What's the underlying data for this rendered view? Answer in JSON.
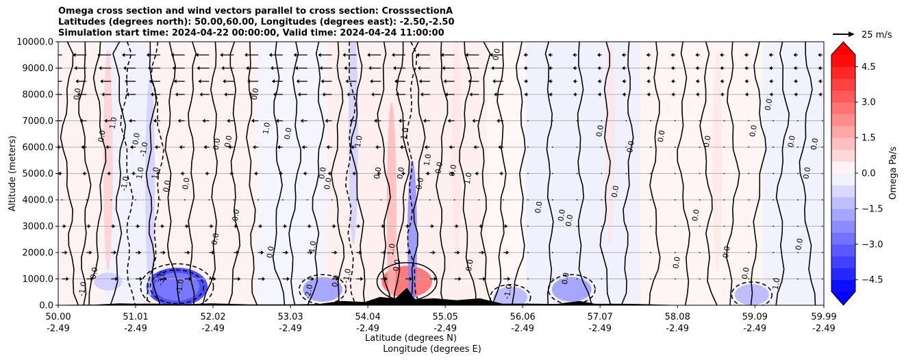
{
  "chart_data": {
    "type": "heatmap",
    "title_lines": [
      "Omega cross section and wind vectors parallel to cross section: CrosssectionA",
      "Latitudes (degrees north): 50.00,60.00, Longitudes (degrees east): -2.50,-2.50",
      "Simulation start time: 2024-04-22 00:00:00, Valid time: 2024-04-24 11:00:00"
    ],
    "ylabel": "Altitude (meters)",
    "xlabel_lat": "Latitude (degrees N)",
    "xlabel_lon": "Longitude (degrees E)",
    "ylim": [
      0,
      10000
    ],
    "yticks": [
      0,
      1000,
      2000,
      3000,
      4000,
      5000,
      6000,
      7000,
      8000,
      9000,
      10000
    ],
    "ytick_labels": [
      "0.0",
      "1000.0",
      "2000.0",
      "3000.0",
      "4000.0",
      "5000.0",
      "6000.0",
      "7000.0",
      "8000.0",
      "9000.0",
      "10000.0"
    ],
    "xlim": [
      50.0,
      59.99
    ],
    "xticks_lat": [
      50.0,
      51.01,
      52.02,
      53.03,
      54.04,
      55.05,
      56.06,
      57.07,
      58.08,
      59.09,
      59.99
    ],
    "xtick_lat_labels": [
      "50.00",
      "51.01",
      "52.02",
      "53.03",
      "54.04",
      "55.05",
      "56.06",
      "57.07",
      "58.08",
      "59.09",
      "59.99"
    ],
    "xtick_lon_labels": [
      "-2.49",
      "-2.49",
      "-2.49",
      "-2.49",
      "-2.49",
      "-2.49",
      "-2.49",
      "-2.49",
      "-2.49",
      "-2.49",
      "-2.49"
    ],
    "grid": "horizontal",
    "colorbar": {
      "label": "Omega Pa/s",
      "range": [
        -5.0,
        5.0
      ],
      "step": 0.5,
      "tick_values": [
        -4.5,
        -3.0,
        -1.5,
        0.0,
        1.5,
        3.0,
        4.5
      ],
      "tick_labels": [
        "−4.5",
        "−3.0",
        "−1.5",
        "0.0",
        "1.5",
        "3.0",
        "4.5"
      ],
      "cmap": "bwr",
      "extend": "both"
    },
    "quiver_key": {
      "label": "25 m/s",
      "value": 25
    },
    "omega_features": [
      {
        "lat": 51.55,
        "alt": 700,
        "value": -4.0,
        "kind": "blob"
      },
      {
        "lat": 51.55,
        "alt": 700,
        "value": -2.5,
        "kind": "blob"
      },
      {
        "lat": 50.65,
        "alt": 900,
        "value": -1.0,
        "kind": "blob"
      },
      {
        "lat": 53.45,
        "alt": 600,
        "value": -2.0,
        "kind": "blob"
      },
      {
        "lat": 55.9,
        "alt": 300,
        "value": -1.5,
        "kind": "blob"
      },
      {
        "lat": 56.7,
        "alt": 600,
        "value": -2.0,
        "kind": "blob"
      },
      {
        "lat": 59.05,
        "alt": 400,
        "value": -1.5,
        "kind": "blob"
      },
      {
        "lat": 54.55,
        "alt": 900,
        "value": 3.0,
        "kind": "blob"
      },
      {
        "lat": 54.62,
        "alt": 2500,
        "value": -2.5,
        "kind": "column"
      },
      {
        "lat": 54.35,
        "alt": 3500,
        "value": 1.5,
        "kind": "column"
      },
      {
        "lat": 50.65,
        "alt": 5500,
        "value": 1.0,
        "kind": "column"
      },
      {
        "lat": 51.2,
        "alt": 4500,
        "value": -1.0,
        "kind": "column"
      },
      {
        "lat": 53.85,
        "alt": 6500,
        "value": -1.0,
        "kind": "column"
      },
      {
        "lat": 55.2,
        "alt": 6000,
        "value": 0.5,
        "kind": "column"
      },
      {
        "lat": 57.2,
        "alt": 6500,
        "value": 0.5,
        "kind": "column"
      },
      {
        "lat": 58.6,
        "alt": 5500,
        "value": 0.5,
        "kind": "column"
      }
    ],
    "contour_labels": [
      {
        "lat": 50.28,
        "alt": 8000,
        "text": "0.0"
      },
      {
        "lat": 50.6,
        "alt": 6400,
        "text": "0.0"
      },
      {
        "lat": 50.75,
        "alt": 6900,
        "text": "1.0"
      },
      {
        "lat": 51.05,
        "alt": 6300,
        "text": "0.0"
      },
      {
        "lat": 51.1,
        "alt": 5000,
        "text": "1.0"
      },
      {
        "lat": 50.9,
        "alt": 4600,
        "text": "-1.0"
      },
      {
        "lat": 51.3,
        "alt": 5000,
        "text": "1.0"
      },
      {
        "lat": 51.15,
        "alt": 5900,
        "text": "-1.0"
      },
      {
        "lat": 51.45,
        "alt": 4500,
        "text": "0.0"
      },
      {
        "lat": 51.7,
        "alt": 4600,
        "text": "0.0"
      },
      {
        "lat": 52.08,
        "alt": 2500,
        "text": "0.0"
      },
      {
        "lat": 52.1,
        "alt": 6100,
        "text": "0.0"
      },
      {
        "lat": 52.25,
        "alt": 6200,
        "text": "0.0"
      },
      {
        "lat": 52.35,
        "alt": 3400,
        "text": "0.0"
      },
      {
        "lat": 52.6,
        "alt": 8000,
        "text": "0.0"
      },
      {
        "lat": 52.75,
        "alt": 6700,
        "text": "1.0"
      },
      {
        "lat": 52.8,
        "alt": 2000,
        "text": "0.0"
      },
      {
        "lat": 53.03,
        "alt": 6500,
        "text": "0.0"
      },
      {
        "lat": 53.35,
        "alt": 2200,
        "text": "1.0"
      },
      {
        "lat": 53.48,
        "alt": 5000,
        "text": "0.0"
      },
      {
        "lat": 53.55,
        "alt": 4600,
        "text": "0.0"
      },
      {
        "lat": 53.3,
        "alt": 500,
        "text": "-2.0"
      },
      {
        "lat": 53.8,
        "alt": 1100,
        "text": "-1.0"
      },
      {
        "lat": 53.95,
        "alt": 6200,
        "text": "1.0"
      },
      {
        "lat": 54.2,
        "alt": 5000,
        "text": "0.0"
      },
      {
        "lat": 54.45,
        "alt": 1500,
        "text": "0.0"
      },
      {
        "lat": 54.5,
        "alt": 5000,
        "text": "0.0"
      },
      {
        "lat": 54.38,
        "alt": 2100,
        "text": "1.0"
      },
      {
        "lat": 54.55,
        "alt": 6500,
        "text": "1.0"
      },
      {
        "lat": 54.75,
        "alt": 4600,
        "text": "0.0"
      },
      {
        "lat": 54.85,
        "alt": 5500,
        "text": "1.0"
      },
      {
        "lat": 55.0,
        "alt": 5200,
        "text": "0.0"
      },
      {
        "lat": 55.18,
        "alt": 5100,
        "text": "0.0"
      },
      {
        "lat": 55.38,
        "alt": 4800,
        "text": "1.0"
      },
      {
        "lat": 55.75,
        "alt": 9500,
        "text": "0.0"
      },
      {
        "lat": 55.4,
        "alt": 1500,
        "text": "0.0"
      },
      {
        "lat": 56.3,
        "alt": 3700,
        "text": "0.0"
      },
      {
        "lat": 56.6,
        "alt": 3400,
        "text": "0.0"
      },
      {
        "lat": 56.7,
        "alt": 3200,
        "text": "0.0"
      },
      {
        "lat": 57.1,
        "alt": 6600,
        "text": "0.0"
      },
      {
        "lat": 57.3,
        "alt": 4300,
        "text": "0.0"
      },
      {
        "lat": 57.5,
        "alt": 6000,
        "text": "0.0"
      },
      {
        "lat": 57.9,
        "alt": 6400,
        "text": "0.0"
      },
      {
        "lat": 58.35,
        "alt": 3400,
        "text": "0.0"
      },
      {
        "lat": 58.5,
        "alt": 6200,
        "text": "0.0"
      },
      {
        "lat": 58.75,
        "alt": 2000,
        "text": "0.0"
      },
      {
        "lat": 59.1,
        "alt": 6600,
        "text": "0.0"
      },
      {
        "lat": 59.3,
        "alt": 7600,
        "text": "0.0"
      },
      {
        "lat": 59.6,
        "alt": 6200,
        "text": "0.0"
      },
      {
        "lat": 59.8,
        "alt": 5000,
        "text": "0.0"
      },
      {
        "lat": 59.9,
        "alt": 6100,
        "text": "0.0"
      },
      {
        "lat": 59.7,
        "alt": 2300,
        "text": "0.0"
      },
      {
        "lat": 51.38,
        "alt": 1000,
        "text": "-3.0"
      },
      {
        "lat": 51.62,
        "alt": 700,
        "text": "-1.0"
      },
      {
        "lat": 50.35,
        "alt": 600,
        "text": "-1.0"
      },
      {
        "lat": 50.5,
        "alt": 1200,
        "text": "0.0"
      },
      {
        "lat": 53.65,
        "alt": 900,
        "text": "0.0"
      },
      {
        "lat": 55.9,
        "alt": 500,
        "text": "-1.0"
      },
      {
        "lat": 56.65,
        "alt": 1000,
        "text": "0.0"
      },
      {
        "lat": 58.1,
        "alt": 1600,
        "text": "0.0"
      },
      {
        "lat": 59.0,
        "alt": 1200,
        "text": "0.0"
      },
      {
        "lat": 59.4,
        "alt": 800,
        "text": "1.0"
      }
    ],
    "contour_line_lats": [
      50.12,
      50.35,
      50.55,
      50.8,
      51.2,
      51.45,
      51.75,
      52.05,
      52.3,
      52.5,
      52.85,
      53.1,
      53.4,
      53.65,
      53.9,
      54.25,
      54.5,
      54.7,
      55.0,
      55.3,
      55.55,
      55.8,
      56.05,
      56.4,
      56.8,
      57.15,
      57.45,
      57.8,
      58.15,
      58.45,
      58.8,
      59.15,
      59.45,
      59.75
    ],
    "dashed_line_lats": [
      50.9,
      51.3,
      53.8,
      54.6
    ],
    "wind_vectors": [
      {
        "alt": 9500,
        "u": -8
      },
      {
        "alt": 9000,
        "u": -7
      },
      {
        "alt": 8500,
        "u": -6
      },
      {
        "alt": 8000,
        "u": -5
      },
      {
        "alt": 7000,
        "u": -3
      },
      {
        "alt": 6000,
        "u": -2
      },
      {
        "alt": 5000,
        "u": -1
      },
      {
        "alt": 4000,
        "u": 0
      },
      {
        "alt": 3000,
        "u": 1
      },
      {
        "alt": 2000,
        "u": 2
      },
      {
        "alt": 1000,
        "u": 3
      }
    ],
    "terrain": [
      [
        50.0,
        0
      ],
      [
        50.5,
        20
      ],
      [
        50.8,
        60
      ],
      [
        51.0,
        80
      ],
      [
        51.3,
        50
      ],
      [
        51.6,
        40
      ],
      [
        52.0,
        60
      ],
      [
        52.5,
        30
      ],
      [
        53.0,
        20
      ],
      [
        53.4,
        60
      ],
      [
        53.7,
        150
      ],
      [
        54.0,
        180
      ],
      [
        54.2,
        300
      ],
      [
        54.4,
        400
      ],
      [
        54.55,
        650
      ],
      [
        54.65,
        350
      ],
      [
        54.9,
        250
      ],
      [
        55.2,
        300
      ],
      [
        55.5,
        250
      ],
      [
        55.8,
        80
      ],
      [
        56.1,
        50
      ],
      [
        56.5,
        60
      ],
      [
        56.8,
        150
      ],
      [
        57.0,
        80
      ],
      [
        57.5,
        40
      ],
      [
        58.0,
        0
      ],
      [
        59.99,
        0
      ]
    ]
  }
}
